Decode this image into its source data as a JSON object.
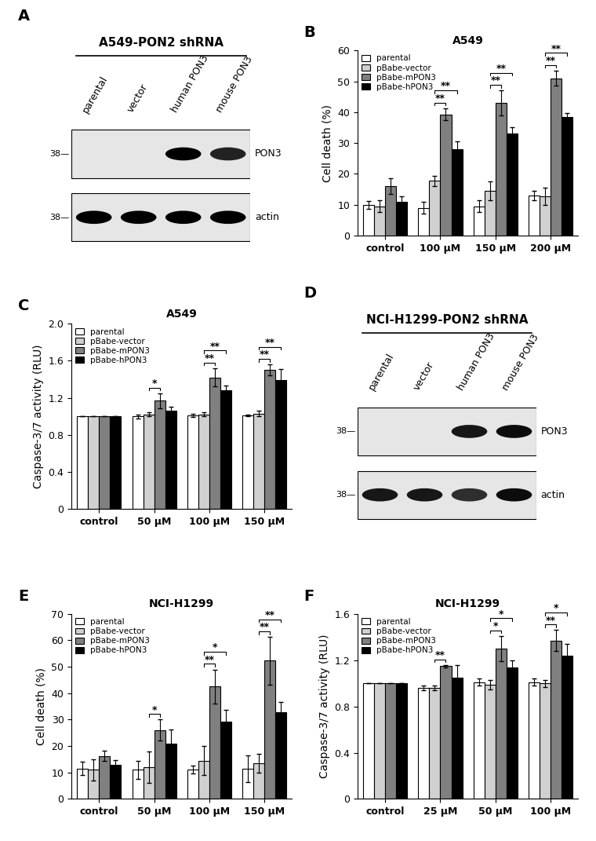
{
  "chart_data": [
    {
      "type": "blot",
      "panel": "A",
      "title": "A549-PON2 shRNA",
      "categories": [
        "parental",
        "vector",
        "human PON3",
        "mouse PON3"
      ],
      "rows": [
        {
          "name": "PON3",
          "ladder": "38—",
          "values": [
            0,
            0,
            1,
            0.85
          ]
        },
        {
          "name": "actin",
          "ladder": "38—",
          "values": [
            1,
            1,
            1,
            1
          ]
        }
      ]
    },
    {
      "type": "bar",
      "panel": "B",
      "title": "A549",
      "y_label": "Cell death (%)",
      "categories": [
        "control",
        "100 µM",
        "150 µM",
        "200 µM"
      ],
      "series": [
        {
          "name": "parental",
          "color": "#ffffff",
          "values": [
            10,
            9,
            9.5,
            13
          ],
          "errors": [
            1.3,
            2,
            2,
            1.5
          ]
        },
        {
          "name": "pBabe-vector",
          "color": "#d0d0d0",
          "values": [
            9.5,
            17.7,
            14.5,
            12.7
          ],
          "errors": [
            2,
            1.7,
            3,
            2.7
          ]
        },
        {
          "name": "pBabe-mPON3",
          "color": "#808080",
          "values": [
            16,
            39.3,
            43,
            51
          ],
          "errors": [
            2.5,
            2,
            4,
            2.5
          ]
        },
        {
          "name": "pBabe-hPON3",
          "color": "#000000",
          "values": [
            11,
            28,
            33,
            38.3
          ],
          "errors": [
            1.8,
            2.5,
            2,
            1.5
          ]
        }
      ],
      "ylim": [
        0,
        60
      ],
      "yticks": [
        0,
        10,
        20,
        30,
        40,
        50,
        60
      ],
      "legend": "upper left",
      "significance": [
        {
          "category": "100 µM",
          "series": [
            "pBabe-vector",
            "pBabe-mPON3"
          ],
          "label": "**"
        },
        {
          "category": "100 µM",
          "series": [
            "pBabe-vector",
            "pBabe-hPON3"
          ],
          "label": "**"
        },
        {
          "category": "150 µM",
          "series": [
            "pBabe-vector",
            "pBabe-mPON3"
          ],
          "label": "**"
        },
        {
          "category": "150 µM",
          "series": [
            "pBabe-vector",
            "pBabe-hPON3"
          ],
          "label": "**"
        },
        {
          "category": "200 µM",
          "series": [
            "pBabe-vector",
            "pBabe-mPON3"
          ],
          "label": "**"
        },
        {
          "category": "200 µM",
          "series": [
            "pBabe-vector",
            "pBabe-hPON3"
          ],
          "label": "**"
        }
      ]
    },
    {
      "type": "bar",
      "panel": "C",
      "title": "A549",
      "y_label": "Caspase-3/7 activity (RLU)",
      "categories": [
        "control",
        "50 µM",
        "100 µM",
        "150 µM"
      ],
      "series": [
        {
          "name": "parental",
          "color": "#ffffff",
          "values": [
            1,
            1.0,
            1.01,
            1.01
          ],
          "errors": [
            0,
            0.02,
            0.02,
            0.01
          ]
        },
        {
          "name": "pBabe-vector",
          "color": "#d0d0d0",
          "values": [
            1,
            1.02,
            1.02,
            1.03
          ],
          "errors": [
            0,
            0.02,
            0.02,
            0.03
          ]
        },
        {
          "name": "pBabe-mPON3",
          "color": "#808080",
          "values": [
            1,
            1.17,
            1.42,
            1.5
          ],
          "errors": [
            0,
            0.08,
            0.1,
            0.06
          ]
        },
        {
          "name": "pBabe-hPON3",
          "color": "#000000",
          "values": [
            1,
            1.06,
            1.28,
            1.39
          ],
          "errors": [
            0,
            0.04,
            0.05,
            0.12
          ]
        }
      ],
      "ylim": [
        0,
        2
      ],
      "yticks": [
        0,
        0.4,
        0.8,
        1.2,
        1.6,
        {
          "value": 2,
          "label": "2.0"
        }
      ],
      "legend": "upper left",
      "significance": [
        {
          "category": "50 µM",
          "series": [
            "pBabe-vector",
            "pBabe-mPON3"
          ],
          "label": "*"
        },
        {
          "category": "100 µM",
          "series": [
            "pBabe-vector",
            "pBabe-mPON3"
          ],
          "label": "**"
        },
        {
          "category": "100 µM",
          "series": [
            "pBabe-vector",
            "pBabe-hPON3"
          ],
          "label": "**"
        },
        {
          "category": "150 µM",
          "series": [
            "pBabe-vector",
            "pBabe-mPON3"
          ],
          "label": "**"
        },
        {
          "category": "150 µM",
          "series": [
            "pBabe-vector",
            "pBabe-hPON3"
          ],
          "label": "**"
        }
      ]
    },
    {
      "type": "blot",
      "panel": "D",
      "title": "NCI-H1299-PON2 shRNA",
      "categories": [
        "parental",
        "vector",
        "human PON3",
        "mouse PON3"
      ],
      "rows": [
        {
          "name": "PON3",
          "ladder": "38—",
          "values": [
            0,
            0,
            0.9,
            0.95
          ]
        },
        {
          "name": "actin",
          "ladder": "38—",
          "values": [
            0.9,
            0.9,
            0.8,
            0.95
          ]
        }
      ]
    },
    {
      "type": "bar",
      "panel": "E",
      "title": "NCI-H1299",
      "y_label": "Cell death (%)",
      "categories": [
        "control",
        "50 µM",
        "100 µM",
        "150 µM"
      ],
      "series": [
        {
          "name": "parental",
          "color": "#ffffff",
          "values": [
            11.5,
            11,
            11,
            11.5
          ],
          "errors": [
            2.5,
            3.5,
            1.5,
            5
          ]
        },
        {
          "name": "pBabe-vector",
          "color": "#d0d0d0",
          "values": [
            11,
            12,
            14.5,
            13.5
          ],
          "errors": [
            4,
            6,
            5.5,
            3.5
          ]
        },
        {
          "name": "pBabe-mPON3",
          "color": "#808080",
          "values": [
            16.3,
            26,
            42.5,
            52.3
          ],
          "errors": [
            2,
            4,
            6.5,
            9
          ]
        },
        {
          "name": "pBabe-hPON3",
          "color": "#000000",
          "values": [
            13,
            21,
            29.3,
            32.8
          ],
          "errors": [
            1.8,
            5.3,
            4.5,
            4
          ]
        }
      ],
      "ylim": [
        0,
        70
      ],
      "yticks": [
        0,
        10,
        20,
        30,
        40,
        50,
        60,
        70
      ],
      "legend": "upper left",
      "significance": [
        {
          "category": "50 µM",
          "series": [
            "pBabe-vector",
            "pBabe-mPON3"
          ],
          "label": "*"
        },
        {
          "category": "100 µM",
          "series": [
            "pBabe-vector",
            "pBabe-mPON3"
          ],
          "label": "**"
        },
        {
          "category": "100 µM",
          "series": [
            "pBabe-vector",
            "pBabe-hPON3"
          ],
          "label": "*"
        },
        {
          "category": "150 µM",
          "series": [
            "pBabe-vector",
            "pBabe-mPON3"
          ],
          "label": "**"
        },
        {
          "category": "150 µM",
          "series": [
            "pBabe-vector",
            "pBabe-hPON3"
          ],
          "label": "**"
        }
      ]
    },
    {
      "type": "bar",
      "panel": "F",
      "title": "NCI-H1299",
      "y_label": "Caspase-3/7 activity (RLU)",
      "categories": [
        "control",
        "25 µM",
        "50 µM",
        "100 µM"
      ],
      "series": [
        {
          "name": "parental",
          "color": "#ffffff",
          "values": [
            1,
            0.96,
            1.01,
            1.01
          ],
          "errors": [
            0,
            0.02,
            0.03,
            0.03
          ]
        },
        {
          "name": "pBabe-vector",
          "color": "#d0d0d0",
          "values": [
            1,
            0.96,
            0.99,
            1.0
          ],
          "errors": [
            0,
            0.02,
            0.04,
            0.03
          ]
        },
        {
          "name": "pBabe-mPON3",
          "color": "#808080",
          "values": [
            1,
            1.15,
            1.3,
            1.37
          ],
          "errors": [
            0,
            0.01,
            0.11,
            0.09
          ]
        },
        {
          "name": "pBabe-hPON3",
          "color": "#000000",
          "values": [
            1,
            1.05,
            1.14,
            1.24
          ],
          "errors": [
            0,
            0.11,
            0.06,
            0.1
          ]
        }
      ],
      "ylim": [
        0,
        1.6
      ],
      "yticks": [
        0,
        0.4,
        0.8,
        1.2,
        1.6
      ],
      "legend": "upper left",
      "significance": [
        {
          "category": "25 µM",
          "series": [
            "pBabe-vector",
            "pBabe-mPON3"
          ],
          "label": "**"
        },
        {
          "category": "50 µM",
          "series": [
            "pBabe-vector",
            "pBabe-mPON3"
          ],
          "label": "*"
        },
        {
          "category": "50 µM",
          "series": [
            "pBabe-vector",
            "pBabe-hPON3"
          ],
          "label": "*"
        },
        {
          "category": "100 µM",
          "series": [
            "pBabe-vector",
            "pBabe-mPON3"
          ],
          "label": "**"
        },
        {
          "category": "100 µM",
          "series": [
            "pBabe-vector",
            "pBabe-hPON3"
          ],
          "label": "*"
        }
      ]
    }
  ]
}
